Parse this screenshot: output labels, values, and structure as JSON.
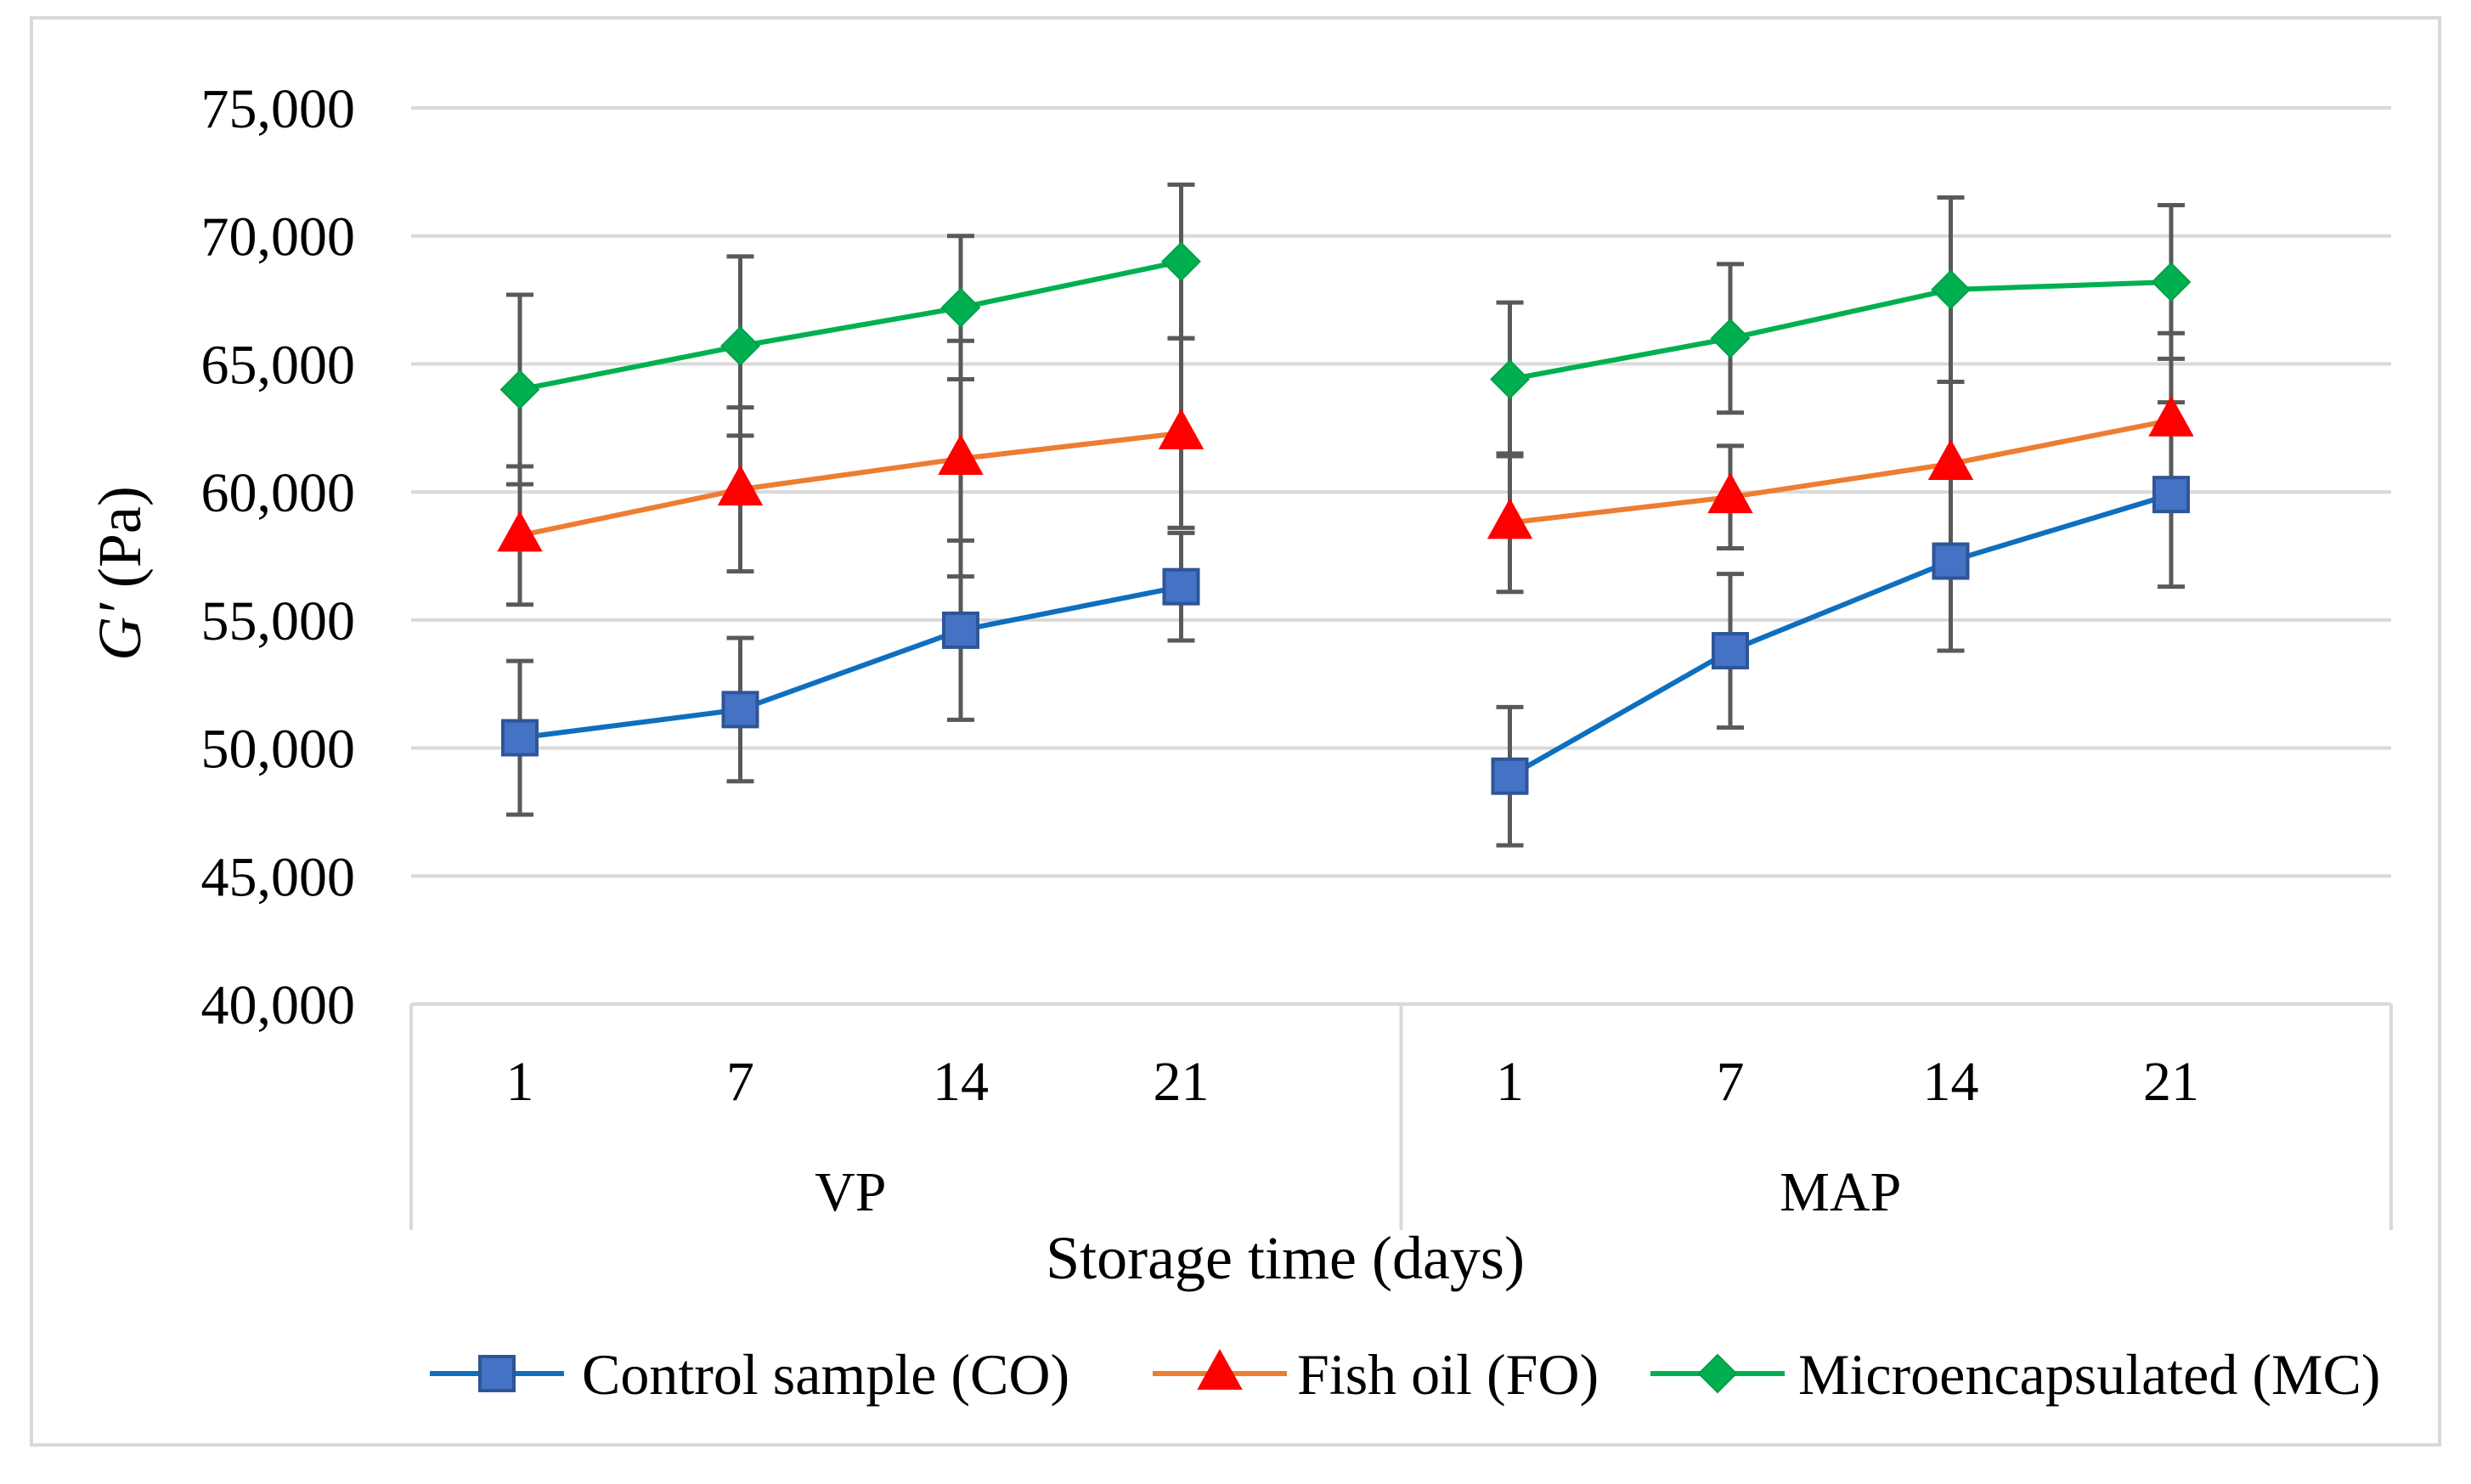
{
  "chart_data": {
    "type": "line",
    "title": "",
    "ylabel": {
      "italic": "G′",
      "rest": " (Pa)"
    },
    "xlabel": "Storage time (days)",
    "ylim": [
      40000,
      75000
    ],
    "ytick_step": 5000,
    "y_ticks": [
      "40,000",
      "45,000",
      "50,000",
      "55,000",
      "60,000",
      "65,000",
      "70,000",
      "75,000"
    ],
    "grid": true,
    "legend_position": "bottom",
    "groups": [
      {
        "label": "VP",
        "categories": [
          "1",
          "7",
          "14",
          "21"
        ]
      },
      {
        "label": "MAP",
        "categories": [
          "1",
          "7",
          "14",
          "21"
        ]
      }
    ],
    "series": [
      {
        "name": "Control sample (CO)",
        "color": "#0E6FBF",
        "marker": "square",
        "marker_color": "#4472C4",
        "values": [
          [
            50400,
            51500,
            54600,
            56300
          ],
          [
            48900,
            53800,
            57300,
            59900
          ]
        ],
        "errors": [
          [
            3000,
            2800,
            3500,
            2100
          ],
          [
            2700,
            3000,
            3500,
            3600
          ]
        ]
      },
      {
        "name": "Fish oil (FO)",
        "color": "#ED7D31",
        "marker": "triangle",
        "marker_color": "#FF0000",
        "values": [
          [
            58300,
            60100,
            61300,
            62300
          ],
          [
            58800,
            59800,
            61100,
            62800
          ]
        ],
        "errors": [
          [
            2700,
            3200,
            4600,
            3700
          ],
          [
            2700,
            2000,
            3200,
            3400
          ]
        ]
      },
      {
        "name": "Microencapsulated (MC)",
        "color": "#00B050",
        "marker": "diamond",
        "marker_color": "#00B050",
        "values": [
          [
            64000,
            65700,
            67200,
            69000
          ],
          [
            64400,
            66000,
            67900,
            68200
          ]
        ],
        "errors": [
          [
            3700,
            3500,
            2800,
            3000
          ],
          [
            3000,
            2900,
            3600,
            3000
          ]
        ]
      }
    ]
  }
}
